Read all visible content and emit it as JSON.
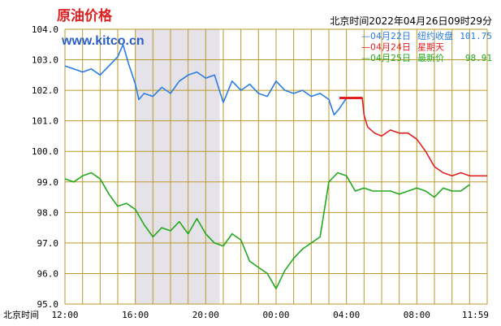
{
  "header": {
    "title": "原油价格",
    "url": "www.kitco.cn",
    "timestamp": "北京时间2022年04月26日09时29分"
  },
  "colors": {
    "grid": "#b89a2a",
    "shade": "#e6e2ea",
    "apr22": "#2a7de1",
    "apr24": "#e02020",
    "apr25": "#22a81e",
    "title": "#e02020",
    "url": "#2a5fc4"
  },
  "legend": [
    {
      "date": "04月22日",
      "label": "纽约收盘",
      "value": "101.75"
    },
    {
      "date": "04月24日",
      "label": "星期天",
      "value": ""
    },
    {
      "date": "04月25日",
      "label": "最新价",
      "value": "98.91"
    }
  ],
  "chart_data": {
    "type": "line",
    "x_unit": "hours since 12:00 Beijing time",
    "ylim": [
      95.0,
      104.0
    ],
    "xlim": [
      0,
      24
    ],
    "y_ticks": [
      "104.0",
      "103.0",
      "102.0",
      "101.0",
      "100.0",
      "99.0",
      "98.0",
      "97.0",
      "96.0",
      "95.0"
    ],
    "x_ticks": [
      "12:00",
      "16:00",
      "20:00",
      "00:00",
      "04:00",
      "08:00",
      "11:59"
    ],
    "x_axis_prefix": "北京时间",
    "grid": true,
    "shaded_region": [
      4.0,
      8.8
    ],
    "series": [
      {
        "name": "04月22日",
        "key": "apr22",
        "x": [
          0,
          0.5,
          1,
          1.5,
          2,
          2.5,
          3,
          3.3,
          3.6,
          4,
          4.2,
          4.5,
          5,
          5.5,
          6,
          6.5,
          7,
          7.5,
          8,
          8.5,
          9,
          9.5,
          10,
          10.5,
          11,
          11.5,
          12,
          12.5,
          13,
          13.5,
          14,
          14.5,
          15,
          15.3,
          15.6,
          16
        ],
        "y": [
          102.8,
          102.7,
          102.6,
          102.7,
          102.5,
          102.8,
          103.1,
          103.5,
          102.9,
          102.2,
          101.7,
          101.9,
          101.8,
          102.1,
          101.9,
          102.3,
          102.5,
          102.6,
          102.4,
          102.5,
          101.6,
          102.3,
          102.0,
          102.2,
          101.9,
          101.8,
          102.3,
          102.0,
          101.9,
          102.0,
          101.8,
          101.9,
          101.7,
          101.2,
          101.4,
          101.75
        ]
      },
      {
        "name": "04月24日",
        "key": "apr24",
        "x": [
          15.6,
          16.9,
          17.0,
          17.2,
          17.6,
          18.0,
          18.5,
          19.0,
          19.5,
          20.0,
          20.5,
          21.0,
          21.5,
          22.0,
          22.5,
          23.0,
          23.5,
          24.0
        ],
        "y": [
          101.75,
          101.75,
          101.2,
          100.8,
          100.6,
          100.5,
          100.7,
          100.6,
          100.6,
          100.4,
          100.0,
          99.5,
          99.3,
          99.2,
          99.3,
          99.2,
          99.2,
          99.2
        ]
      },
      {
        "name": "04月25日",
        "key": "apr25",
        "x": [
          0,
          0.5,
          1,
          1.5,
          2,
          2.5,
          3,
          3.5,
          4,
          4.5,
          5,
          5.5,
          6,
          6.5,
          7,
          7.5,
          8,
          8.5,
          9,
          9.5,
          10,
          10.5,
          11,
          11.5,
          12,
          12.5,
          13,
          13.5,
          14,
          14.5,
          15,
          15.5,
          16,
          16.5,
          17,
          17.5,
          18,
          18.5,
          19,
          19.5,
          20,
          20.5,
          21,
          21.5,
          22,
          22.5,
          23
        ],
        "y": [
          99.1,
          99.0,
          99.2,
          99.3,
          99.1,
          98.6,
          98.2,
          98.3,
          98.1,
          97.6,
          97.2,
          97.5,
          97.4,
          97.7,
          97.3,
          97.8,
          97.3,
          97.0,
          96.9,
          97.3,
          97.1,
          96.4,
          96.2,
          96.0,
          95.5,
          96.1,
          96.5,
          96.8,
          97.0,
          97.2,
          99.0,
          99.3,
          99.2,
          98.7,
          98.8,
          98.7,
          98.7,
          98.7,
          98.6,
          98.7,
          98.8,
          98.7,
          98.5,
          98.8,
          98.7,
          98.7,
          98.91
        ]
      }
    ]
  }
}
